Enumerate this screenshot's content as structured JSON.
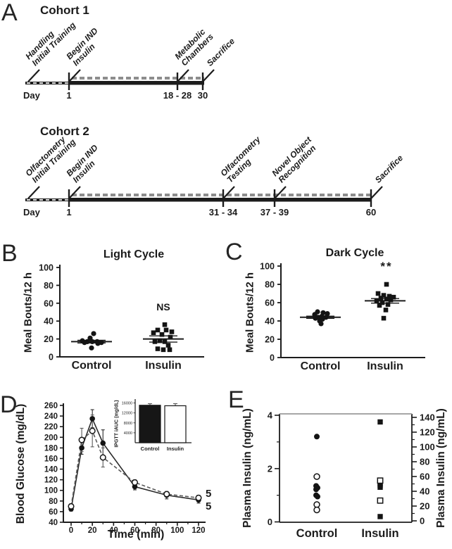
{
  "panels": {
    "a": "A",
    "b": "B",
    "c": "C",
    "d": "D",
    "e": "E"
  },
  "chart_data": [
    {
      "type": "timeline",
      "title": "Cohort 1",
      "day_axis_label": "Day",
      "events": [
        {
          "label": "Handling\nInitial Training",
          "day": ""
        },
        {
          "label": "Begin IND\nInsulin",
          "day": "1"
        },
        {
          "label": "Metabolic\nChambers",
          "day": "18 - 28"
        },
        {
          "label": "Sacrifice",
          "day": "30"
        }
      ]
    },
    {
      "type": "timeline",
      "title": "Cohort 2",
      "day_axis_label": "Day",
      "events": [
        {
          "label": "Olfactometry\nInitial Training",
          "day": ""
        },
        {
          "label": "Begin IND\nInsulin",
          "day": "1"
        },
        {
          "label": "Olfactometry\nTesting",
          "day": "31 - 34"
        },
        {
          "label": "Novel Object\nRecognition",
          "day": "37 - 39"
        },
        {
          "label": "Sacrifice",
          "day": "60"
        }
      ]
    },
    {
      "type": "scatter",
      "title": "Light Cycle",
      "ylabel": "Meal Bouts/12 h",
      "ylim": [
        0,
        100
      ],
      "yticks": [
        0,
        20,
        40,
        60,
        80,
        100
      ],
      "categories": [
        "Control",
        "Insulin"
      ],
      "annotation": "NS",
      "series": [
        {
          "name": "Control",
          "marker": "circle",
          "mean": 17,
          "sem": 1.5,
          "values": [
            26,
            21,
            18,
            17,
            17,
            17,
            16,
            16,
            15,
            10
          ],
          "jitter": [
            3,
            -2,
            -13,
            -6,
            1,
            8,
            14,
            -10,
            9,
            0
          ]
        },
        {
          "name": "Insulin",
          "marker": "square",
          "mean": 20,
          "sem": 3.5,
          "values": [
            36,
            30,
            30,
            28,
            27,
            25,
            22,
            18,
            17,
            17,
            13,
            9,
            8,
            8
          ],
          "jitter": [
            2,
            -8,
            4,
            12,
            -14,
            -2,
            10,
            -5,
            -12,
            2,
            7,
            -8,
            0,
            9
          ]
        }
      ]
    },
    {
      "type": "scatter",
      "title": "Dark Cycle",
      "ylabel": "Meal Bouts/12 h",
      "ylim": [
        0,
        100
      ],
      "yticks": [
        0,
        20,
        40,
        60,
        80,
        100
      ],
      "categories": [
        "Control",
        "Insulin"
      ],
      "annotation": "**",
      "series": [
        {
          "name": "Control",
          "marker": "circle",
          "mean": 44,
          "sem": 1.2,
          "values": [
            50,
            49,
            48,
            47,
            45,
            44,
            44,
            43,
            42,
            40,
            37
          ],
          "jitter": [
            -4,
            4,
            10,
            -8,
            2,
            -3,
            8,
            -7,
            3,
            -1,
            1
          ]
        },
        {
          "name": "Insulin",
          "marker": "square",
          "mean": 62,
          "sem": 2.5,
          "values": [
            80,
            70,
            68,
            67,
            66,
            65,
            64,
            63,
            62,
            60,
            58,
            57,
            52,
            43
          ],
          "jitter": [
            2,
            -10,
            -2,
            6,
            12,
            -6,
            2,
            8,
            -12,
            -4,
            4,
            -8,
            1,
            -2
          ]
        }
      ]
    },
    {
      "type": "line",
      "xlabel": "Time (min)",
      "ylabel": "Blood Glucose (mg/dL)",
      "xlim": [
        0,
        120
      ],
      "ylim": [
        40,
        260
      ],
      "xticks": [
        0,
        20,
        40,
        60,
        80,
        100,
        120
      ],
      "yticks": [
        40,
        60,
        80,
        100,
        120,
        140,
        160,
        180,
        200,
        220,
        240,
        260
      ],
      "x": [
        0,
        10,
        20,
        30,
        60,
        90,
        120
      ],
      "series": [
        {
          "name": "Control",
          "marker": "filled-circle",
          "linestyle": "solid",
          "n_label": "5",
          "values": [
            65,
            180,
            235,
            189,
            107,
            91,
            82
          ],
          "errors": [
            4,
            12,
            17,
            25,
            6,
            7,
            6
          ]
        },
        {
          "name": "Insulin",
          "marker": "open-circle",
          "linestyle": "dashed",
          "n_label": "5",
          "values": [
            70,
            195,
            212,
            162,
            115,
            93,
            86
          ],
          "errors": [
            5,
            22,
            30,
            18,
            5,
            4,
            5
          ]
        }
      ],
      "inset": {
        "type": "bar",
        "ylabel": "IPGTT iAUC (mg/dL)",
        "ylim": [
          0,
          16000
        ],
        "yticks": [
          4000,
          8000,
          12000,
          16000
        ],
        "categories": [
          "Control",
          "Insulin"
        ],
        "values": [
          15100,
          14900
        ],
        "errors": [
          600,
          800
        ],
        "colors": [
          "#161616",
          "#ffffff"
        ]
      }
    },
    {
      "type": "scatter",
      "ylabel_left": "Plasma Insulin (ng/mL)",
      "ylabel_right": "Plasma Insulin (ng/mL)",
      "ylim_left": [
        0,
        4
      ],
      "yticks_left": [
        0,
        2,
        4
      ],
      "ylim_right": [
        0,
        140
      ],
      "yticks_right": [
        0,
        20,
        40,
        60,
        80,
        100,
        120,
        140
      ],
      "categories": [
        "Control",
        "Insulin"
      ],
      "groups": [
        {
          "name": "Control",
          "marker": "circle",
          "filled_values": [
            3.2,
            1.35,
            1.28,
            1.22,
            1.0,
            0.95
          ],
          "filled_jitter": [
            0,
            -1,
            1,
            -1,
            -1,
            1
          ],
          "open_values": [
            1.7,
            0.65,
            0.45
          ],
          "open_jitter": [
            0,
            0,
            0
          ]
        },
        {
          "name": "Insulin",
          "marker": "square",
          "filled_values": [
            3.75,
            1.45,
            1.38,
            1.3,
            0.2
          ],
          "filled_jitter": [
            0,
            0,
            0,
            0,
            0
          ],
          "open_values": [
            1.55,
            0.8
          ],
          "open_jitter": [
            0,
            0
          ]
        }
      ]
    }
  ]
}
